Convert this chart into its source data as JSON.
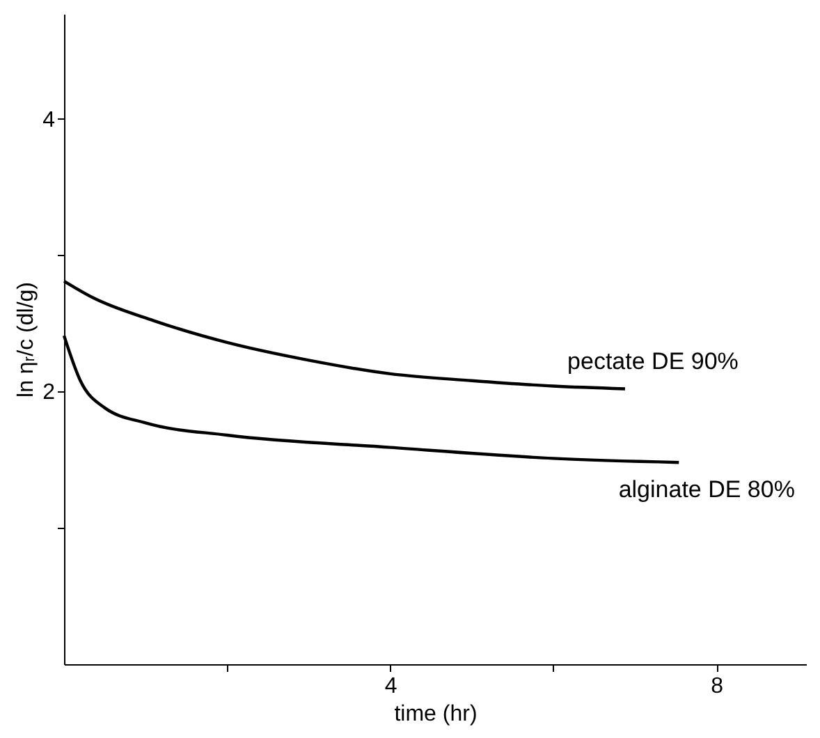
{
  "chart_data": {
    "type": "line",
    "xlabel": "time (hr)",
    "ylabel": "ln ηᵣ/c  (dl/g)",
    "xlim": [
      0,
      9.1
    ],
    "ylim": [
      0,
      4.77
    ],
    "xticks": [
      {
        "value": 2,
        "label": null
      },
      4,
      {
        "value": 6,
        "label": null
      },
      8
    ],
    "yticks": [
      {
        "value": 1,
        "label": null
      },
      2,
      {
        "value": 3,
        "label": null
      },
      4
    ],
    "grid": false,
    "legend": false,
    "marker": "none",
    "line_style": "solid",
    "series": [
      {
        "name": "pectate DE 90%",
        "color": "#000000",
        "x": [
          0,
          0.35,
          1.1,
          2,
          3,
          4,
          5,
          6,
          6.88
        ],
        "values": [
          2.81,
          2.69,
          2.52,
          2.36,
          2.23,
          2.13,
          2.08,
          2.04,
          2.02
        ]
      },
      {
        "name": "alginate DE 80%",
        "color": "#000000",
        "x": [
          0,
          0.2,
          0.5,
          1,
          2,
          4,
          6,
          7.54
        ],
        "values": [
          2.41,
          2.08,
          1.88,
          1.77,
          1.68,
          1.59,
          1.51,
          1.48
        ]
      }
    ]
  }
}
